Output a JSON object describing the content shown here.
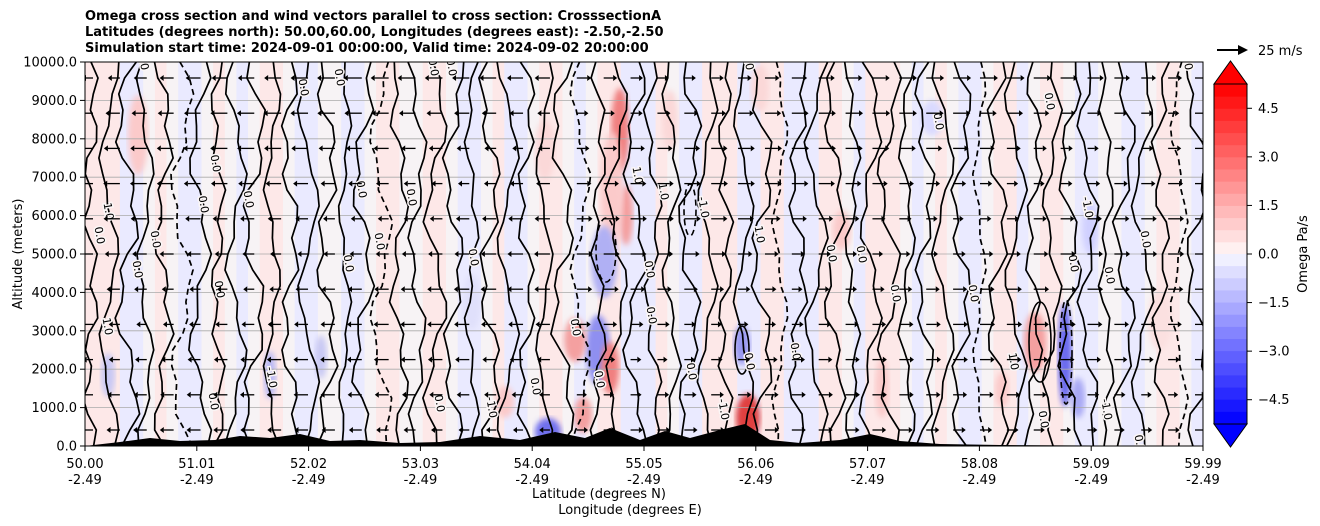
{
  "chart_data": {
    "type": "heatmap",
    "title_lines": [
      "Omega cross section and wind vectors parallel to cross section: CrosssectionA",
      "Latitudes (degrees north): 50.00,60.00, Longitudes (degrees east): -2.50,-2.50",
      "Simulation start time: 2024-09-01 00:00:00, Valid time: 2024-09-02 20:00:00"
    ],
    "ylabel": "Altitude (meters)",
    "xlabel_lat": "Latitude (degrees N)",
    "xlabel_lon": "Longitude (degrees E)",
    "y_ticks": [
      0,
      1000,
      2000,
      3000,
      4000,
      5000,
      6000,
      7000,
      8000,
      9000,
      10000
    ],
    "y_tick_labels": [
      "0.0",
      "1000.0",
      "2000.0",
      "3000.0",
      "4000.0",
      "5000.0",
      "6000.0",
      "7000.0",
      "8000.0",
      "9000.0",
      "10000.0"
    ],
    "ylim": [
      0,
      10000
    ],
    "x_ticks": [
      {
        "lat": "50.00",
        "lon": "-2.49"
      },
      {
        "lat": "51.01",
        "lon": "-2.49"
      },
      {
        "lat": "52.02",
        "lon": "-2.49"
      },
      {
        "lat": "53.03",
        "lon": "-2.49"
      },
      {
        "lat": "54.04",
        "lon": "-2.49"
      },
      {
        "lat": "55.05",
        "lon": "-2.49"
      },
      {
        "lat": "56.06",
        "lon": "-2.49"
      },
      {
        "lat": "57.07",
        "lon": "-2.49"
      },
      {
        "lat": "58.08",
        "lon": "-2.49"
      },
      {
        "lat": "59.09",
        "lon": "-2.49"
      },
      {
        "lat": "59.99",
        "lon": "-2.49"
      }
    ],
    "xlim": [
      50.0,
      59.99
    ],
    "colorbar": {
      "label": "Omega Pa/s",
      "range": [
        -5.25,
        5.25
      ],
      "ticks": [
        4.5,
        3.0,
        1.5,
        0.0,
        -1.5,
        -3.0,
        -4.5
      ],
      "tick_labels": [
        "4.5",
        "3.0",
        "1.5",
        "0.0",
        "−1.5",
        "−3.0",
        "−4.5"
      ],
      "extend": "both",
      "colormap": "bwr"
    },
    "quiver_key": {
      "label": "25 m/s",
      "speed": 25
    },
    "contour_label_values": [
      "0.0",
      "1.0",
      "-1.0"
    ],
    "grid": true,
    "terrain": "black"
  }
}
